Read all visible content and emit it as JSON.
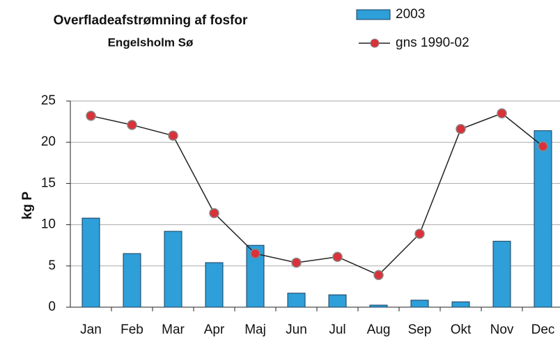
{
  "chart_data": {
    "type": "bar_line",
    "title": "Overfladeafstrømning af fosfor",
    "subtitle": "Engelsholm Sø",
    "y_label": "kg P",
    "categories": [
      "Jan",
      "Feb",
      "Mar",
      "Apr",
      "Maj",
      "Jun",
      "Jul",
      "Aug",
      "Sep",
      "Okt",
      "Nov",
      "Dec"
    ],
    "series": [
      {
        "name": "2003",
        "type": "bar",
        "color": "#2e9fd9",
        "values": [
          10.8,
          6.5,
          9.2,
          5.4,
          7.5,
          1.7,
          1.5,
          0.25,
          0.85,
          0.65,
          8.0,
          21.4
        ]
      },
      {
        "name": "gns 1990-02",
        "type": "line",
        "color": "#d9323a",
        "values": [
          23.2,
          22.1,
          20.8,
          11.4,
          6.5,
          5.4,
          6.1,
          3.9,
          8.9,
          21.6,
          23.5,
          19.5
        ]
      }
    ],
    "ylim": [
      0,
      25
    ],
    "yticks": [
      0,
      5,
      10,
      15,
      20,
      25
    ],
    "grid": true
  }
}
